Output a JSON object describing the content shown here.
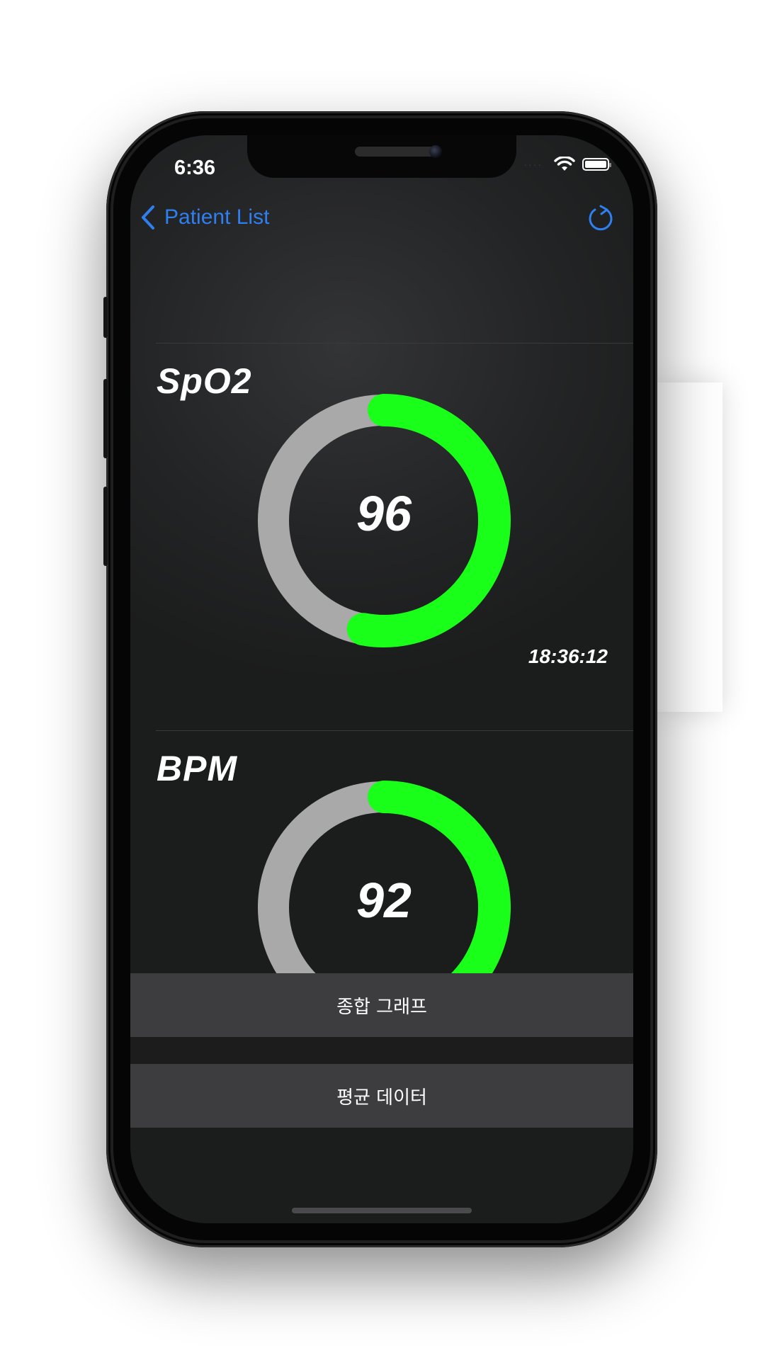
{
  "status_bar": {
    "time": "6:36",
    "signal_dots": "····"
  },
  "nav": {
    "back_label": "Patient List",
    "accent_color": "#2f7ff0"
  },
  "metrics": [
    {
      "title": "SpO2",
      "value": "96",
      "timestamp": "18:36:12",
      "gauge_fill_fraction": 0.53,
      "fill_color": "#19ff19",
      "track_color": "#a9a9a9"
    },
    {
      "title": "BPM",
      "value": "92",
      "gauge_fill_fraction": 0.51,
      "fill_color": "#19ff19",
      "track_color": "#a9a9a9"
    }
  ],
  "buttons": {
    "combined_graph": "종합 그래프",
    "average_data": "평균 데이터"
  }
}
